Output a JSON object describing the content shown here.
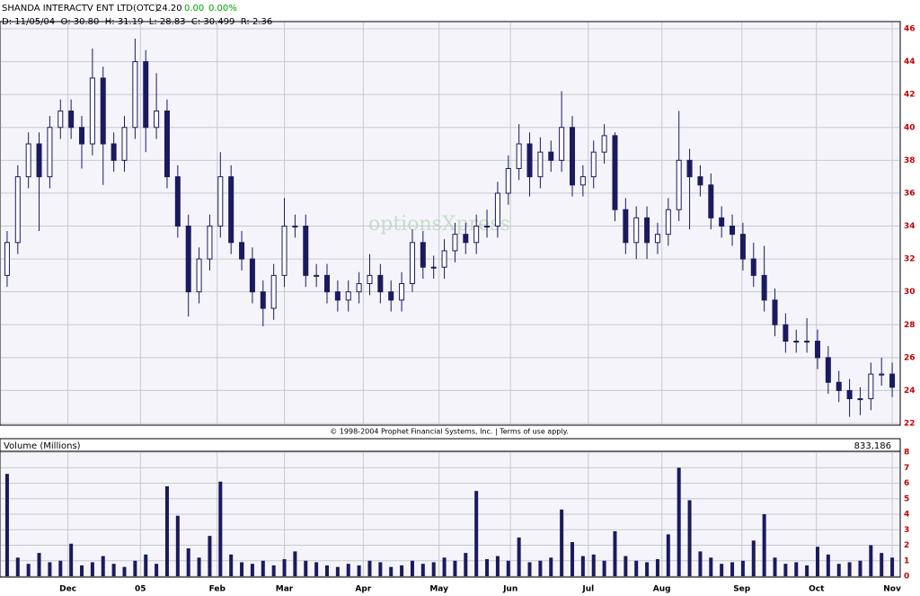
{
  "chart_data": [
    {
      "type": "candlestick",
      "title": "SHANDA INTERACTV ENT LTD(OTC)",
      "last": "24.20",
      "change": "0.00",
      "change_percent": "0.00%",
      "subtitle": "D: 11/05/04  O: 30.80  H: 31.19  L: 28.83  C: 30.499  R: 2.36",
      "watermark": "optionsXpress",
      "footer": "© 1998-2004 Prophet Financial Systems, Inc. | Terms of use apply.",
      "up_color": "#ffffff",
      "down_color": "#1a1a5e",
      "line_color": "#1a1a5e",
      "xlim": [
        0,
        84
      ],
      "ylim": [
        22,
        46
      ],
      "yticks": [
        22,
        24,
        26,
        28,
        30,
        32,
        34,
        36,
        38,
        40,
        42,
        44,
        46
      ],
      "grid": true,
      "open": [
        31,
        33,
        37,
        39,
        37,
        40,
        41,
        40,
        39,
        43,
        39,
        38,
        40,
        44,
        40,
        41,
        37,
        34,
        30,
        32,
        34,
        37,
        33,
        32,
        30,
        29,
        31,
        34,
        34,
        31,
        31,
        30,
        29.5,
        30,
        30.5,
        31,
        30,
        29.5,
        30.5,
        33,
        31.5,
        31.5,
        32.5,
        33.5,
        33,
        34,
        34,
        36,
        37.5,
        39,
        37,
        38.5,
        38,
        40,
        36.5,
        37,
        38.5,
        39.5,
        35,
        33,
        34.5,
        33,
        33.5,
        35,
        38,
        37,
        36.5,
        34.5,
        34,
        33.5,
        32,
        31,
        29.5,
        28,
        27,
        27,
        27,
        26,
        24.5,
        24,
        23.5,
        23.5,
        25,
        25
      ],
      "high": [
        33.7,
        37.7,
        39.7,
        39.7,
        40.7,
        41.7,
        41.7,
        40.7,
        44.8,
        43.7,
        39.7,
        40.7,
        45.4,
        44.7,
        43.3,
        41.7,
        37.7,
        34.7,
        32.7,
        34.7,
        38.5,
        37.7,
        33.7,
        32.7,
        30.7,
        31.7,
        35.7,
        34.7,
        34.7,
        31.7,
        31.7,
        30.7,
        30.7,
        31.2,
        32.3,
        31.7,
        30.7,
        31.2,
        33.8,
        33.7,
        32.2,
        33.2,
        34.2,
        34.2,
        34.7,
        35,
        36.7,
        38.3,
        40.2,
        39.7,
        39.4,
        39.2,
        42.2,
        40.7,
        37.7,
        39.2,
        40.2,
        39.7,
        35.7,
        35.2,
        35.2,
        34.2,
        35.7,
        41,
        38.7,
        37.7,
        37.2,
        35.2,
        34.7,
        34.2,
        33,
        32.8,
        30.2,
        28.7,
        27.7,
        28.4,
        27.7,
        26.7,
        25.2,
        24.7,
        24.2,
        25.7,
        26,
        25.7
      ],
      "low": [
        30.3,
        32.3,
        36.3,
        33.7,
        36.3,
        39.3,
        39.3,
        37.5,
        38.3,
        36.5,
        37.3,
        37.3,
        39.3,
        38.5,
        39.3,
        36.3,
        33.3,
        28.5,
        29.3,
        31.3,
        33.3,
        32.3,
        31.3,
        29.3,
        27.9,
        28.3,
        30.3,
        33.3,
        30.3,
        30.3,
        29.3,
        28.8,
        28.8,
        29.3,
        29.8,
        29.3,
        28.8,
        28.8,
        30,
        30.8,
        30.8,
        30.8,
        31.8,
        32.3,
        32.3,
        33.3,
        33.3,
        35.3,
        36.8,
        35.8,
        36.3,
        37.3,
        37.3,
        35.8,
        35.8,
        36.3,
        37.8,
        34.3,
        32.3,
        32,
        32,
        32.3,
        32.8,
        34.3,
        33.8,
        35.8,
        33.8,
        33.3,
        32.8,
        31.3,
        30.3,
        28.8,
        27.3,
        26.3,
        26.3,
        26.3,
        25.3,
        23.8,
        23.3,
        22.4,
        22.5,
        22.8,
        24.3,
        23.6
      ],
      "close": [
        33,
        37,
        39,
        37,
        40,
        41,
        40,
        39,
        43,
        39,
        38,
        40,
        44,
        40,
        41,
        37,
        34,
        30,
        32,
        34,
        37,
        33,
        32,
        30,
        29,
        31,
        34,
        34,
        31,
        31,
        30,
        29.5,
        30,
        30.5,
        31,
        30,
        29.5,
        30.5,
        33,
        31.5,
        31.5,
        32.5,
        33.5,
        33,
        34,
        34,
        36,
        37.5,
        39,
        37,
        38.5,
        38,
        40,
        36.5,
        37,
        38.5,
        39.5,
        35,
        33,
        34.5,
        33,
        33.5,
        35,
        38,
        37,
        36.5,
        34.5,
        34,
        33.5,
        32,
        31,
        29.5,
        28,
        27,
        27,
        27,
        26,
        24.5,
        24,
        23.5,
        23.5,
        25,
        25,
        24.2
      ]
    },
    {
      "type": "bar",
      "title": "Volume (Millions)",
      "annotation": "833,186",
      "color": "#1a1a5e",
      "xlim": [
        0,
        84
      ],
      "ylim": [
        0,
        8
      ],
      "yticks": [
        0,
        1,
        2,
        3,
        4,
        5,
        6,
        7,
        8
      ],
      "grid": true,
      "xticks": [
        {
          "value": 6.2,
          "label": "Dec"
        },
        {
          "value": 13,
          "label": "05"
        },
        {
          "value": 20.2,
          "label": "Feb"
        },
        {
          "value": 26.5,
          "label": "Mar"
        },
        {
          "value": 33.9,
          "label": "Apr"
        },
        {
          "value": 41,
          "label": "May"
        },
        {
          "value": 47.7,
          "label": "Jun"
        },
        {
          "value": 55,
          "label": "Jul"
        },
        {
          "value": 61.9,
          "label": "Aug"
        },
        {
          "value": 69.4,
          "label": "Sep"
        },
        {
          "value": 76.4,
          "label": "Oct"
        },
        {
          "value": 83.5,
          "label": "Nov"
        }
      ],
      "values": [
        6.6,
        1.2,
        0.8,
        1.5,
        0.9,
        1.0,
        2.1,
        0.7,
        0.9,
        1.3,
        0.8,
        0.6,
        1.0,
        1.4,
        0.8,
        5.8,
        3.9,
        1.8,
        1.2,
        2.6,
        6.1,
        1.4,
        0.9,
        0.8,
        1.0,
        0.7,
        1.1,
        1.6,
        1.0,
        0.9,
        0.7,
        0.6,
        0.8,
        0.7,
        1.0,
        0.9,
        0.6,
        0.7,
        1.0,
        0.8,
        0.9,
        1.2,
        1.0,
        1.5,
        5.5,
        1.1,
        1.3,
        1.0,
        2.5,
        0.9,
        1.0,
        1.2,
        4.3,
        2.2,
        1.3,
        1.4,
        1.0,
        2.9,
        1.3,
        1.0,
        0.9,
        1.1,
        2.7,
        7.0,
        4.9,
        1.6,
        1.2,
        0.8,
        0.9,
        1.0,
        2.3,
        4.0,
        1.2,
        0.8,
        0.9,
        0.7,
        1.9,
        1.4,
        0.8,
        0.9,
        1.0,
        2.0,
        1.5,
        1.2
      ]
    }
  ]
}
